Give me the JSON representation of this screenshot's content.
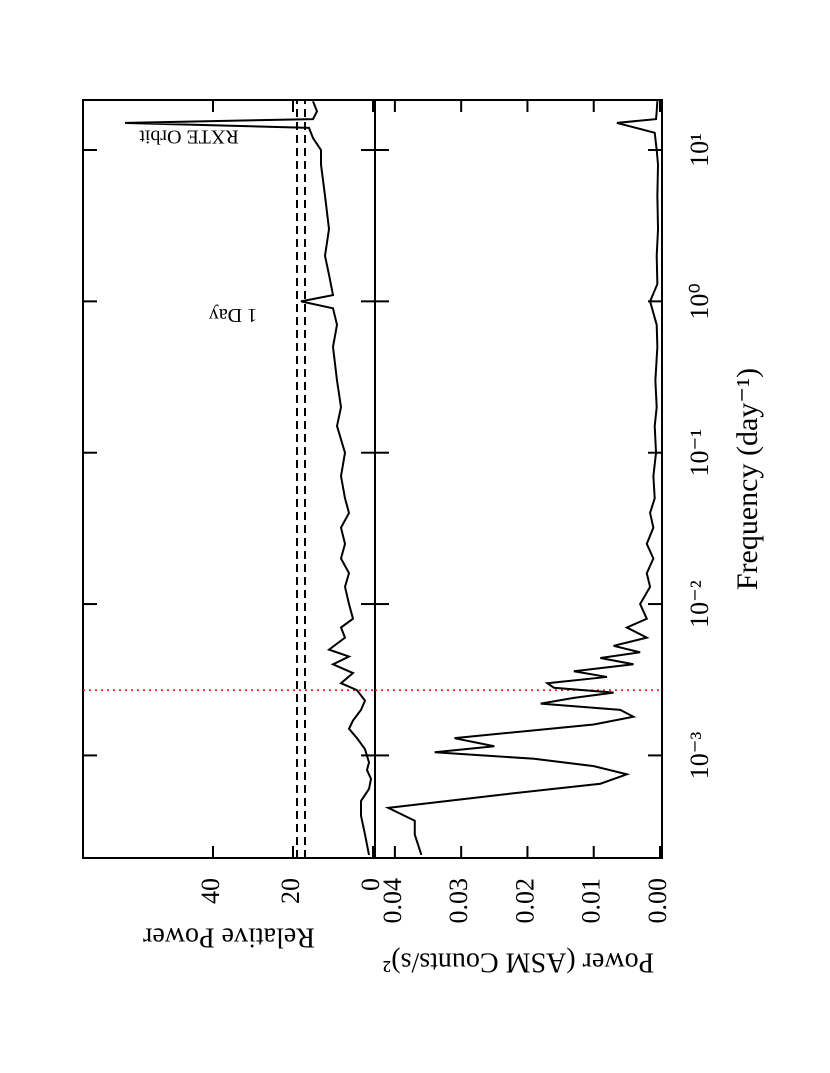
{
  "chart_data": [
    {
      "type": "line",
      "ylabel": "Relative Power",
      "xscale": "log",
      "color": "#000000",
      "xlim": [
        0.00021,
        21.4
      ],
      "xticks": [
        0.001,
        0.01,
        0.1,
        1,
        10
      ],
      "ylim": [
        -0.5,
        72.5
      ],
      "yticks": [
        0,
        20,
        40
      ],
      "x": [
        0.00022,
        0.0003,
        0.0004,
        0.0005,
        0.0006,
        0.0007,
        0.0008,
        0.0009,
        0.0011,
        0.0013,
        0.0015,
        0.0017,
        0.002,
        0.0023,
        0.0027,
        0.003,
        0.0035,
        0.004,
        0.0045,
        0.005,
        0.006,
        0.007,
        0.008,
        0.01,
        0.013,
        0.016,
        0.02,
        0.025,
        0.032,
        0.04,
        0.05,
        0.07,
        0.1,
        0.15,
        0.2,
        0.3,
        0.5,
        0.7,
        0.9,
        1.0,
        1.1,
        1.5,
        2,
        3,
        5,
        8,
        10,
        12,
        14,
        15.1,
        16,
        18,
        21
      ],
      "values": [
        1,
        2,
        3,
        3,
        1,
        0.5,
        1.5,
        1,
        2,
        4,
        6,
        5,
        3,
        2,
        4,
        8,
        5,
        10,
        6,
        11,
        7,
        8,
        5,
        6,
        7,
        6,
        8,
        7,
        8,
        6,
        7,
        8,
        7,
        9,
        8,
        9,
        10,
        9,
        10,
        18,
        10,
        11,
        12,
        11,
        12,
        13,
        13,
        15,
        16,
        62,
        15,
        14,
        15
      ],
      "hlines": [
        19,
        17
      ],
      "vlines": [
        0.0027
      ],
      "vline_color": "#e00000",
      "annotations": [
        {
          "text": "1 Day",
          "x": 1,
          "y": 35
        },
        {
          "text": "RXTE Orbit",
          "x": 15.1,
          "y": 46
        }
      ]
    },
    {
      "type": "line",
      "ylabel": "Power (ASM Counts/s)²",
      "xlabel": "Frequency (day⁻¹)",
      "xscale": "log",
      "color": "#000000",
      "xlim": [
        0.00021,
        21.4
      ],
      "xticks": [
        {
          "value": 0.001,
          "label": "10⁻³"
        },
        {
          "value": 0.01,
          "label": "10⁻²"
        },
        {
          "value": 0.1,
          "label": "10⁻¹"
        },
        {
          "value": 1,
          "label": "10⁰"
        },
        {
          "value": 10,
          "label": "10¹"
        }
      ],
      "ylim": [
        -0.0003,
        0.043
      ],
      "yticks": [
        {
          "value": 0,
          "label": "0.00"
        },
        0.01,
        0.02,
        0.03,
        0.04
      ],
      "x": [
        0.00022,
        0.0003,
        0.00037,
        0.00045,
        0.00055,
        0.00065,
        0.00075,
        0.00085,
        0.00095,
        0.00105,
        0.00115,
        0.0013,
        0.00145,
        0.0016,
        0.0018,
        0.002,
        0.0022,
        0.0024,
        0.0026,
        0.0028,
        0.003,
        0.0033,
        0.0036,
        0.004,
        0.0044,
        0.0048,
        0.0053,
        0.006,
        0.007,
        0.008,
        0.01,
        0.013,
        0.016,
        0.02,
        0.025,
        0.032,
        0.04,
        0.05,
        0.07,
        0.1,
        0.15,
        0.2,
        0.3,
        0.5,
        0.7,
        1.0,
        1.3,
        2,
        3,
        5,
        8,
        10,
        13,
        15.1,
        16,
        18,
        21
      ],
      "values": [
        0.036,
        0.037,
        0.037,
        0.041,
        0.024,
        0.009,
        0.005,
        0.01,
        0.019,
        0.034,
        0.025,
        0.031,
        0.02,
        0.01,
        0.004,
        0.006,
        0.018,
        0.013,
        0.007,
        0.016,
        0.017,
        0.008,
        0.013,
        0.004,
        0.009,
        0.003,
        0.007,
        0.002,
        0.005,
        0.002,
        0.003,
        0.0015,
        0.002,
        0.001,
        0.002,
        0.001,
        0.0015,
        0.0008,
        0.001,
        0.0006,
        0.0008,
        0.0005,
        0.0007,
        0.0004,
        0.0005,
        0.0015,
        0.0004,
        0.0005,
        0.0003,
        0.0004,
        0.0003,
        0.0005,
        0.0008,
        0.0065,
        0.0006,
        0.0005,
        0.0004
      ],
      "vlines": [
        0.0027
      ],
      "vline_color": "#e00000"
    }
  ]
}
